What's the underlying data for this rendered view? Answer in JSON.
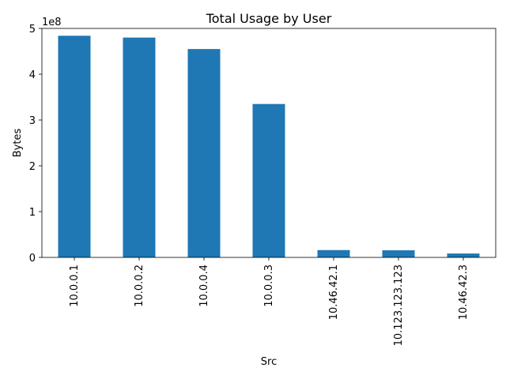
{
  "chart_data": {
    "type": "bar",
    "title": "Total Usage by User",
    "xlabel": "Src",
    "ylabel": "Bytes",
    "y_offset_label": "1e8",
    "categories": [
      "10.0.0.1",
      "10.0.0.2",
      "10.0.0.4",
      "10.0.0.3",
      "10.46.42.1",
      "10.123.123.123",
      "10.46.42.3"
    ],
    "values": [
      484000000,
      480000000,
      455000000,
      335000000,
      16000000,
      15500000,
      8500000
    ],
    "ylim": [
      0,
      500000000
    ],
    "yticks": [
      0,
      100000000,
      200000000,
      300000000,
      400000000,
      500000000
    ],
    "ytick_labels": [
      "0",
      "1",
      "2",
      "3",
      "4",
      "5"
    ],
    "bar_color": "#1f77b4",
    "grid": false,
    "legend": "none"
  }
}
